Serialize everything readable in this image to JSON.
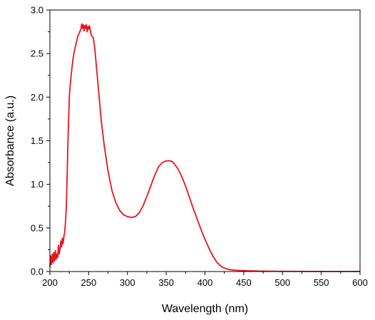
{
  "chart_data": {
    "type": "line",
    "xlabel": "Wavelength (nm)",
    "ylabel": "Absorbance (a.u.)",
    "xlim": [
      200,
      600
    ],
    "ylim": [
      0,
      3.0
    ],
    "x_ticks": [
      200,
      250,
      300,
      350,
      400,
      450,
      500,
      550,
      600
    ],
    "y_ticks": [
      0.0,
      0.5,
      1.0,
      1.5,
      2.0,
      2.5,
      3.0
    ],
    "x_tick_labels": [
      "200",
      "250",
      "300",
      "350",
      "400",
      "450",
      "500",
      "550",
      "600"
    ],
    "y_tick_labels": [
      "0.0",
      "0.5",
      "1.0",
      "1.5",
      "2.0",
      "2.5",
      "3.0"
    ],
    "grid": false,
    "series": [
      {
        "color": "#e8141b",
        "x": [
          200,
          201,
          202,
          203,
          204,
          205,
          206,
          207,
          208,
          209,
          210,
          211,
          212,
          213,
          214,
          215,
          216,
          217,
          218,
          219,
          220,
          221,
          222,
          223,
          224,
          225,
          226,
          227,
          228,
          229,
          230,
          232,
          234,
          236,
          238,
          240,
          241,
          242,
          243,
          244,
          245,
          246,
          247,
          248,
          249,
          250,
          251,
          252,
          253,
          254,
          256,
          258,
          260,
          263,
          266,
          270,
          275,
          280,
          285,
          290,
          295,
          300,
          305,
          310,
          315,
          320,
          325,
          330,
          335,
          340,
          345,
          350,
          355,
          358,
          360,
          365,
          370,
          375,
          380,
          385,
          390,
          395,
          400,
          405,
          410,
          415,
          420,
          425,
          430,
          435,
          440,
          450,
          460,
          470,
          480,
          490,
          500,
          520,
          540,
          560,
          580,
          600
        ],
        "y": [
          0.05,
          0.18,
          0.08,
          0.2,
          0.1,
          0.22,
          0.12,
          0.24,
          0.14,
          0.2,
          0.16,
          0.3,
          0.2,
          0.26,
          0.35,
          0.28,
          0.38,
          0.32,
          0.4,
          0.45,
          0.55,
          0.7,
          1.0,
          1.4,
          1.7,
          2.0,
          2.12,
          2.22,
          2.3,
          2.38,
          2.45,
          2.55,
          2.62,
          2.7,
          2.74,
          2.78,
          2.84,
          2.79,
          2.83,
          2.76,
          2.82,
          2.79,
          2.83,
          2.75,
          2.81,
          2.78,
          2.82,
          2.77,
          2.72,
          2.7,
          2.68,
          2.55,
          2.35,
          2.05,
          1.75,
          1.45,
          1.15,
          0.93,
          0.79,
          0.7,
          0.65,
          0.63,
          0.62,
          0.63,
          0.67,
          0.75,
          0.86,
          0.98,
          1.1,
          1.2,
          1.25,
          1.27,
          1.27,
          1.26,
          1.24,
          1.18,
          1.09,
          0.98,
          0.85,
          0.72,
          0.6,
          0.48,
          0.37,
          0.27,
          0.18,
          0.11,
          0.065,
          0.04,
          0.025,
          0.018,
          0.014,
          0.01,
          0.007,
          0.005,
          0.004,
          0.003,
          0.002,
          0.002,
          0.001,
          0.001,
          0.001,
          0.001
        ]
      }
    ]
  }
}
